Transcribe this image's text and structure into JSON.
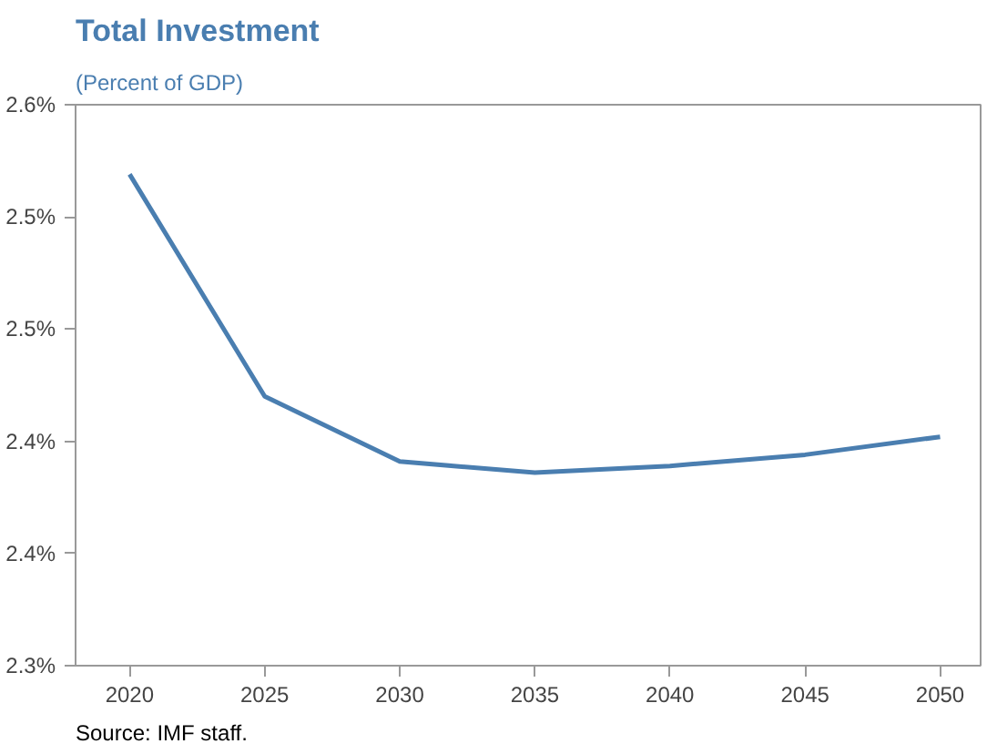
{
  "chart_data": {
    "type": "line",
    "title": "Total Investment",
    "subtitle": "(Percent of GDP)",
    "x": [
      2020,
      2025,
      2030,
      2035,
      2040,
      2045,
      2050
    ],
    "series": [
      {
        "color": "#4a7eb0",
        "values": [
          2.519,
          2.42,
          2.391,
          2.386,
          2.389,
          2.394,
          2.402
        ]
      }
    ],
    "xlim": [
      2018,
      2051.5
    ],
    "xticks": [
      2020,
      2025,
      2030,
      2035,
      2040,
      2045,
      2050
    ],
    "ylim": [
      2.3,
      2.55
    ],
    "yticks": [
      {
        "value": 2.3,
        "label": "2.3%"
      },
      {
        "value": 2.35,
        "label": "2.4%"
      },
      {
        "value": 2.4,
        "label": "2.4%"
      },
      {
        "value": 2.45,
        "label": "2.5%"
      },
      {
        "value": 2.5,
        "label": "2.5%"
      },
      {
        "value": 2.55,
        "label": "2.6%"
      }
    ],
    "grid": false,
    "marker": "none",
    "line_style": "solid",
    "annotations": [
      "Source: IMF staff."
    ]
  }
}
